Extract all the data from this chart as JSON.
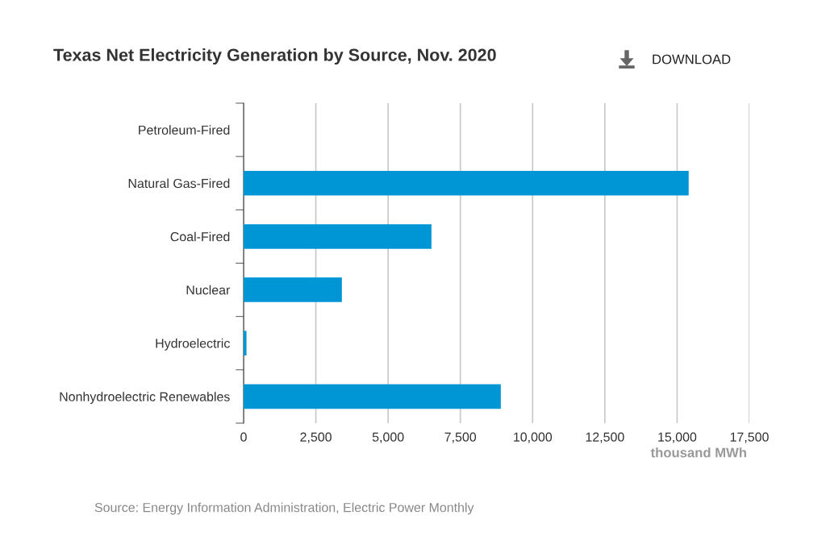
{
  "chart_data": {
    "type": "bar",
    "orientation": "horizontal",
    "title": "Texas Net Electricity Generation by Source, Nov. 2020",
    "xlabel": "thousand MWh",
    "categories": [
      "Petroleum-Fired",
      "Natural Gas-Fired",
      "Coal-Fired",
      "Nuclear",
      "Hydroelectric",
      "Nonhydroelectric Renewables"
    ],
    "values": [
      0,
      15400,
      6500,
      3400,
      100,
      8900
    ],
    "color": "#0096d6",
    "xlim": [
      0,
      17500
    ],
    "xticks": [
      0,
      {
        "value": 2500,
        "label": "2,500"
      },
      {
        "value": 5000,
        "label": "5,000"
      },
      {
        "value": 7500,
        "label": "7,500"
      },
      {
        "value": 10000,
        "label": "10,000"
      },
      {
        "value": 12500,
        "label": "12,500"
      },
      {
        "value": 15000,
        "label": "15,000"
      },
      {
        "value": 17500,
        "label": "17,500"
      }
    ],
    "grid": "x",
    "legend": false,
    "annotations": [
      "DOWNLOAD",
      "Source: Energy Information Administration, Electric Power Monthly"
    ]
  }
}
